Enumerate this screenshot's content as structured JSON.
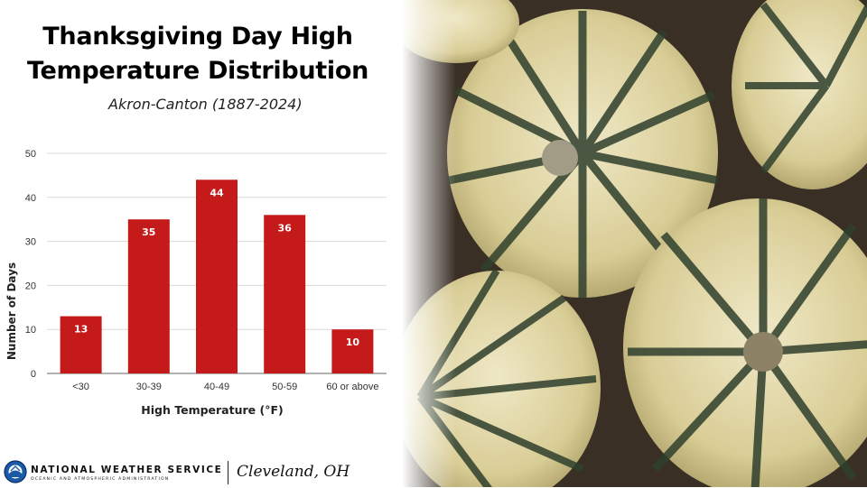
{
  "title_lines": [
    "Thanksgiving Day High",
    "Temperature Distribution"
  ],
  "subtitle": "Akron-Canton (1887-2024)",
  "chart_data": {
    "type": "bar",
    "categories": [
      "<30",
      "30-39",
      "40-49",
      "50-59",
      "60 or above"
    ],
    "values": [
      13,
      35,
      44,
      36,
      10
    ],
    "xlabel": "High Temperature (°F)",
    "ylabel": "Number of Days",
    "ylim": [
      0,
      50
    ],
    "yticks": [
      0,
      10,
      20,
      30,
      40,
      50
    ],
    "grid": true,
    "legend": "none",
    "bar_color": "#c41a1a",
    "data_labels": true
  },
  "footer": {
    "agency": "NATIONAL WEATHER SERVICE",
    "agency_sub": "OCEANIC AND ATMOSPHERIC ADMINISTRATION",
    "office": "Cleveland, OH"
  },
  "photo_icon": "pumpkins-photo",
  "colors": {
    "bar": "#c41a1a",
    "grid": "#d9d9d9",
    "logo_blue": "#1a5aa6"
  }
}
